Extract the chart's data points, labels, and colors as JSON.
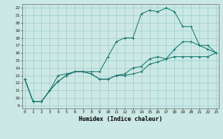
{
  "xlabel": "Humidex (Indice chaleur)",
  "bg_color": "#cce8e4",
  "line_color": "#1a7a6e",
  "grid_color": "#99cccc",
  "x_ticks": [
    0,
    1,
    2,
    3,
    4,
    5,
    6,
    7,
    8,
    9,
    10,
    11,
    12,
    13,
    14,
    15,
    16,
    17,
    18,
    19,
    20,
    21,
    22,
    23
  ],
  "y_ticks": [
    9,
    10,
    11,
    12,
    13,
    14,
    15,
    16,
    17,
    18,
    19,
    20,
    21,
    22
  ],
  "xlim": [
    -0.3,
    23.3
  ],
  "ylim": [
    8.6,
    22.5
  ],
  "line1_x": [
    0,
    1,
    2,
    3,
    4,
    5,
    6,
    7,
    8,
    9,
    10,
    11,
    12,
    13,
    14,
    15,
    16,
    17,
    18,
    19,
    20,
    21,
    22,
    23
  ],
  "line1_y": [
    12.5,
    9.5,
    9.5,
    11.0,
    13.0,
    13.2,
    13.5,
    13.5,
    13.2,
    12.5,
    12.5,
    13.0,
    13.0,
    13.2,
    13.5,
    14.5,
    14.8,
    15.2,
    15.5,
    15.5,
    15.5,
    15.5,
    15.5,
    16.0
  ],
  "line2_x": [
    0,
    1,
    2,
    3,
    4,
    5,
    6,
    7,
    8,
    9,
    10,
    11,
    12,
    13,
    14,
    15,
    16,
    17,
    18,
    19,
    20,
    21,
    22,
    23
  ],
  "line2_y": [
    12.5,
    9.5,
    9.5,
    11.0,
    12.2,
    13.0,
    13.5,
    13.5,
    13.2,
    12.5,
    12.5,
    13.0,
    13.2,
    14.0,
    14.2,
    15.2,
    15.5,
    15.2,
    16.5,
    17.5,
    17.5,
    17.0,
    16.5,
    16.0
  ],
  "line3_x": [
    0,
    1,
    2,
    3,
    4,
    5,
    6,
    7,
    8,
    9,
    10,
    11,
    12,
    13,
    14,
    15,
    16,
    17,
    18,
    19,
    20,
    21,
    22,
    23
  ],
  "line3_y": [
    12.5,
    9.5,
    9.5,
    11.0,
    12.2,
    13.0,
    13.5,
    13.5,
    13.5,
    13.5,
    15.5,
    17.5,
    18.0,
    18.0,
    21.2,
    21.7,
    21.5,
    22.0,
    21.5,
    19.5,
    19.5,
    17.0,
    17.0,
    16.0
  ]
}
